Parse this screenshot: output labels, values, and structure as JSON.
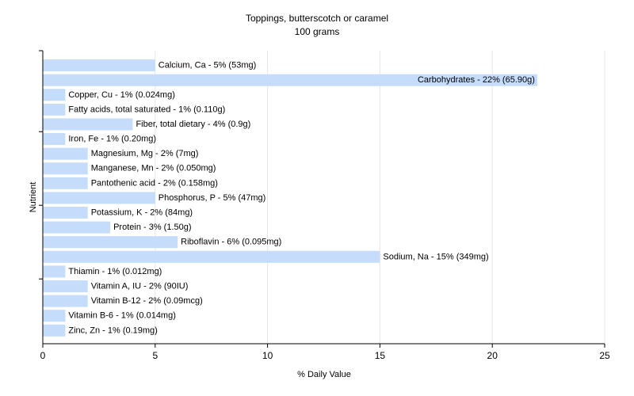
{
  "chart_data": {
    "type": "bar",
    "orientation": "horizontal",
    "title": "Toppings, butterscotch or caramel",
    "subtitle": "100 grams",
    "xlabel": "% Daily Value",
    "ylabel": "Nutrient",
    "xlim": [
      0,
      25
    ],
    "xticks": [
      0,
      5,
      10,
      15,
      20,
      25
    ],
    "grid": true,
    "bar_color": "#c5dcfa",
    "categories": [
      "Calcium, Ca",
      "Carbohydrates",
      "Copper, Cu",
      "Fatty acids, total saturated",
      "Fiber, total dietary",
      "Iron, Fe",
      "Magnesium, Mg",
      "Manganese, Mn",
      "Pantothenic acid",
      "Phosphorus, P",
      "Potassium, K",
      "Protein",
      "Riboflavin",
      "Sodium, Na",
      "Thiamin",
      "Vitamin A, IU",
      "Vitamin B-12",
      "Vitamin B-6",
      "Zinc, Zn"
    ],
    "values": [
      5,
      22,
      1,
      1,
      4,
      1,
      2,
      2,
      2,
      5,
      2,
      3,
      6,
      15,
      1,
      2,
      2,
      1,
      1
    ],
    "labels": [
      "Calcium, Ca - 5% (53mg)",
      "Carbohydrates - 22% (65.90g)",
      "Copper, Cu - 1% (0.024mg)",
      "Fatty acids, total saturated - 1% (0.110g)",
      "Fiber, total dietary - 4% (0.9g)",
      "Iron, Fe - 1% (0.20mg)",
      "Magnesium, Mg - 2% (7mg)",
      "Manganese, Mn - 2% (0.050mg)",
      "Pantothenic acid - 2% (0.158mg)",
      "Phosphorus, P - 5% (47mg)",
      "Potassium, K - 2% (84mg)",
      "Protein - 3% (1.50g)",
      "Riboflavin - 6% (0.095mg)",
      "Sodium, Na - 15% (349mg)",
      "Thiamin - 1% (0.012mg)",
      "Vitamin A, IU - 2% (90IU)",
      "Vitamin B-12 - 2% (0.09mcg)",
      "Vitamin B-6 - 1% (0.014mg)",
      "Zinc, Zn - 1% (0.19mg)"
    ]
  }
}
